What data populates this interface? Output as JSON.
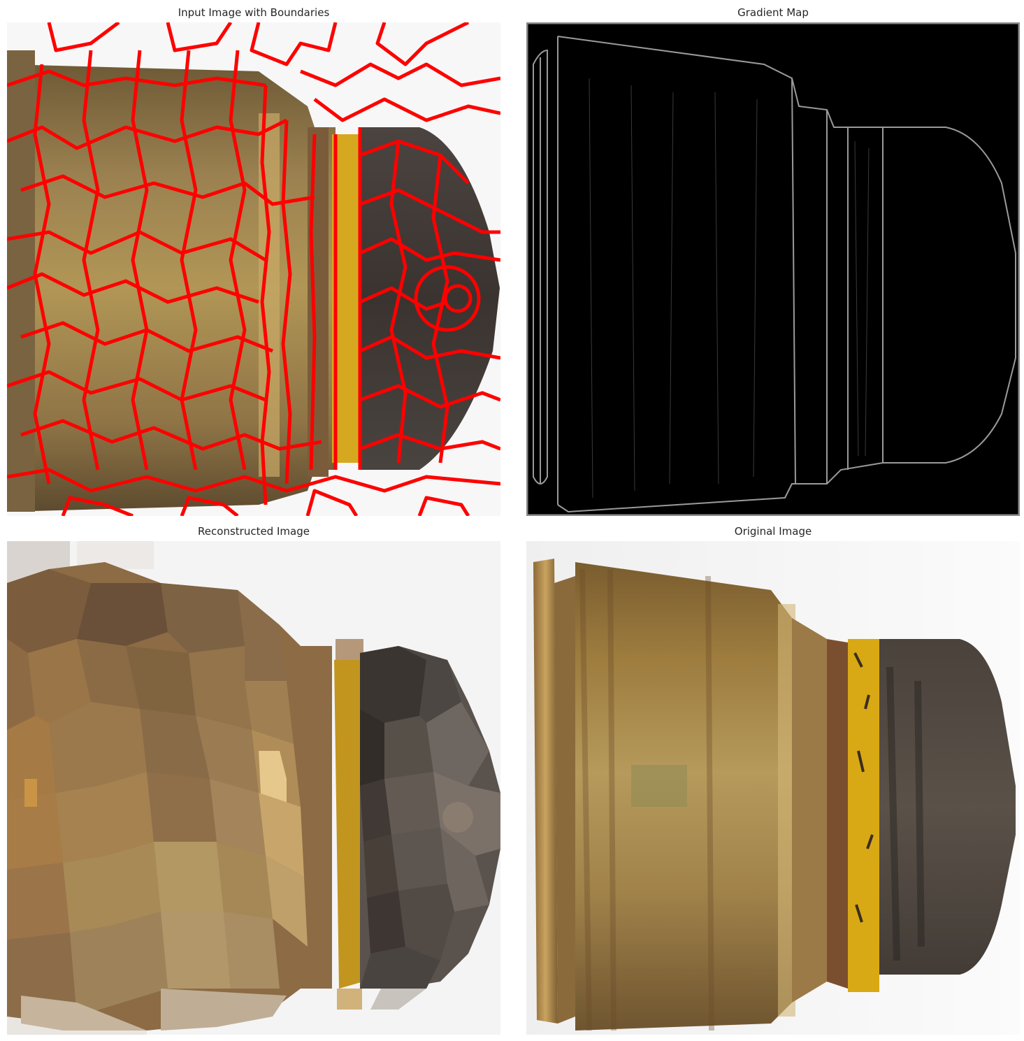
{
  "panels": {
    "top_left": {
      "title": "Input Image with Boundaries"
    },
    "top_right": {
      "title": "Gradient Map"
    },
    "bottom_left": {
      "title": "Reconstructed Image"
    },
    "bottom_right": {
      "title": "Original Image"
    }
  },
  "colors": {
    "boundary": "#ff0000",
    "brass": "#a88a4c",
    "brass_dark": "#6f5a34",
    "yellow_band": "#d9a816",
    "bullet_tip": "#3a3330",
    "background": "#f6f6f6",
    "gradient_bg": "#000000"
  }
}
